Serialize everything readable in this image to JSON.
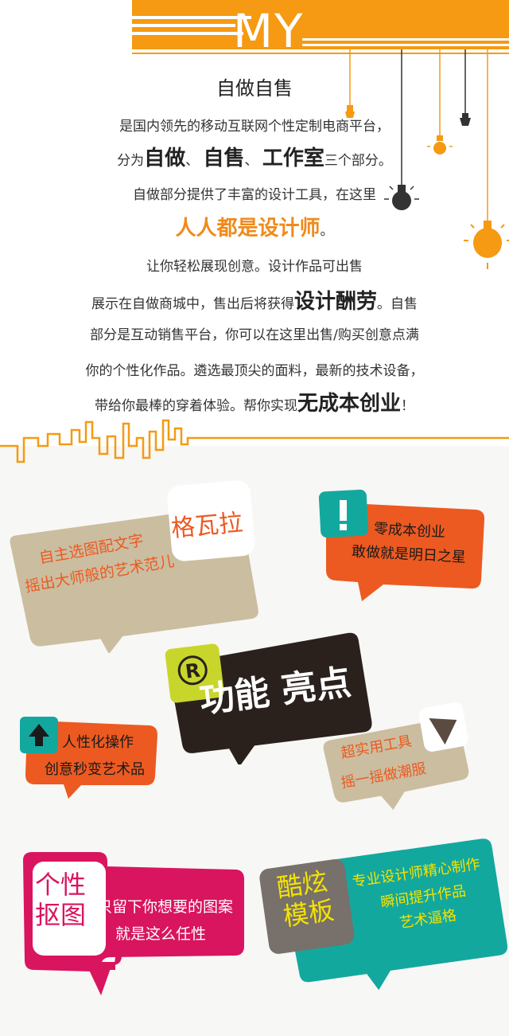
{
  "header": {
    "logo": "MY"
  },
  "intro": {
    "title": "自做自售",
    "l1": "是国内领先的移动互联网个性定制电商平台，",
    "l2_pre": "分为",
    "l2_a": "自做",
    "l2_s1": "、 ",
    "l2_b": "自售",
    "l2_s2": "、 ",
    "l2_c": "工作室",
    "l2_post": "三个部分。",
    "l3": "自做部分提供了丰富的设计工具，在这里",
    "l4_main": "人人都是设计师",
    "l4_end": "。",
    "l5": "让你轻松展现创意。设计作品可出售",
    "l6_pre": "展示在自做商城中，售出后将获得",
    "l6_b": "设计酬劳",
    "l6_post": "。自售",
    "l7": "部分是互动销售平台，你可以在这里出售/购买创意点满",
    "l8": "你的个性化作品。遴选最顶尖的面料，最新的技术设备，",
    "l9_pre": "带给你最棒的穿着体验。帮你实现",
    "l9_b": "无成本创业",
    "l9_post": "！"
  },
  "features": {
    "center": {
      "label": "功能 亮点"
    },
    "gewala": {
      "tag": "格瓦拉",
      "line1": "自主选图配文字",
      "line2": "摇出大师般的艺术范儿"
    },
    "zero": {
      "icon": "exclamation-icon",
      "line1": "零成本创业",
      "line2": "敢做就是明日之星"
    },
    "human": {
      "icon": "up-arrow-icon",
      "line1": "人性化操作",
      "line2": "创意秒变艺术品"
    },
    "tool": {
      "icon": "tool-triangle-icon",
      "line1": "超实用工具",
      "line2": "摇一摇做潮服"
    },
    "cutout": {
      "tag1": "个性",
      "tag2": "抠图",
      "line1": "只留下你想要的图案",
      "line2": "就是这么任性"
    },
    "template": {
      "tag1": "酷炫",
      "tag2": "模板",
      "line1": "专业设计师精心制作",
      "line2": "瞬间提升作品",
      "line3": "艺术逼格"
    }
  },
  "colors": {
    "orange": "#f59a12",
    "beige": "#cbbd9f",
    "teal": "#13a89e",
    "redorange": "#ec5a21",
    "magenta": "#d9155f",
    "dark": "#2a211d",
    "lime": "#c8d62b",
    "yellow": "#f4e300"
  }
}
